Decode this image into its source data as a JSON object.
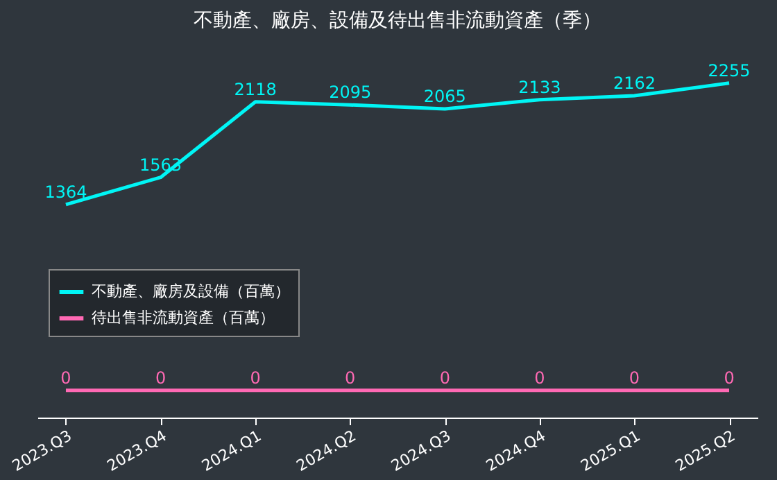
{
  "chart_data": {
    "type": "line",
    "title": "不動產、廠房、設備及待出售非流動資產（季）",
    "categories": [
      "2023.Q3",
      "2023.Q4",
      "2024.Q1",
      "2024.Q2",
      "2024.Q3",
      "2024.Q4",
      "2025.Q1",
      "2025.Q2"
    ],
    "series": [
      {
        "name": "不動產、廠房及設備（百萬）",
        "color": "#00f5f5",
        "values": [
          1364,
          1563,
          2118,
          2095,
          2065,
          2133,
          2162,
          2255
        ]
      },
      {
        "name": "待出售非流動資產（百萬）",
        "color": "#ff69b4",
        "values": [
          0,
          0,
          0,
          0,
          0,
          0,
          0,
          0
        ]
      }
    ],
    "tick_labels": "x",
    "data_labels": true,
    "grid": false,
    "legend": "bottom left",
    "marker": "none",
    "line_style": "solid"
  }
}
